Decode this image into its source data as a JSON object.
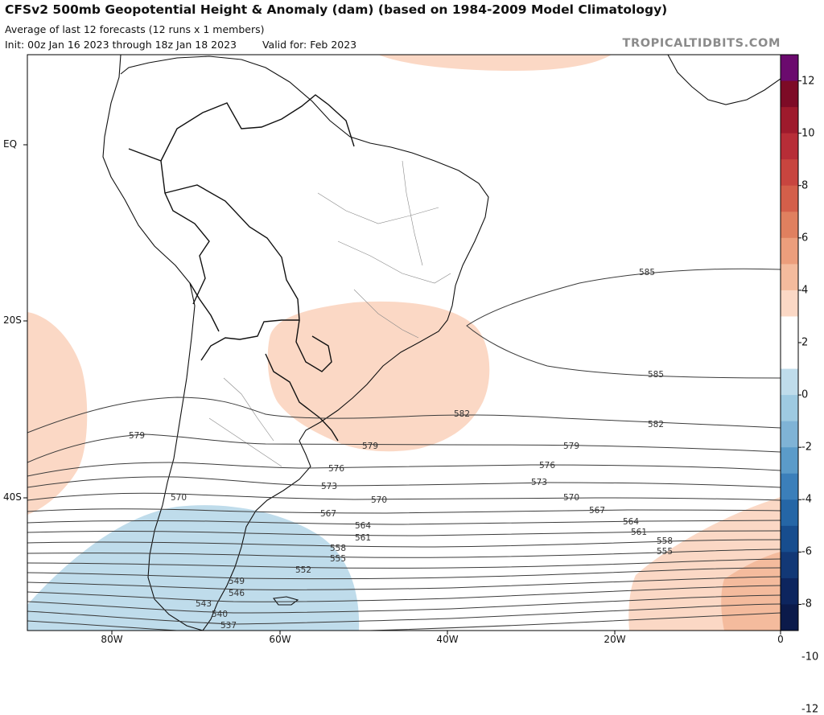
{
  "header": {
    "title": "CFSv2 500mb Geopotential Height & Anomaly (dam) (based on 1984-2009 Model Climatology)",
    "subtitle": "Average of last 12 forecasts (12 runs x 1 members)",
    "init": "Init: 00z Jan 16 2023 through 18z Jan 18 2023",
    "valid": "Valid for: Feb 2023",
    "brand": "TROPICALTIDBITS.COM"
  },
  "axes": {
    "lat_labels": [
      "EQ",
      "20S",
      "40S"
    ],
    "lon_labels": [
      "80W",
      "60W",
      "40W",
      "20W",
      "0"
    ]
  },
  "colorbar": {
    "labels": [
      "12",
      "10",
      "8",
      "6",
      "4",
      "2",
      "0",
      "-2",
      "-4",
      "-6",
      "-8",
      "-10",
      "-12"
    ],
    "colors": [
      "#6b0a6e",
      "#7d0b26",
      "#9e1a2c",
      "#b72d37",
      "#c8453f",
      "#d45f4a",
      "#e0805f",
      "#ec9e7c",
      "#f4bb9d",
      "#fbd8c5",
      "#ffffff",
      "#ffffff",
      "#bfdceb",
      "#9ecae1",
      "#7fb3d6",
      "#5b9bc9",
      "#3b7fba",
      "#2566a6",
      "#174d8e",
      "#123876",
      "#0d255e",
      "#0b1a4a"
    ]
  },
  "contours": [
    {
      "label": "585"
    },
    {
      "label": "582"
    },
    {
      "label": "579"
    },
    {
      "label": "576"
    },
    {
      "label": "573"
    },
    {
      "label": "570"
    },
    {
      "label": "567"
    },
    {
      "label": "564"
    },
    {
      "label": "561"
    },
    {
      "label": "558"
    },
    {
      "label": "555"
    },
    {
      "label": "552"
    },
    {
      "label": "549"
    },
    {
      "label": "546"
    },
    {
      "label": "543"
    },
    {
      "label": "540"
    },
    {
      "label": "537"
    }
  ],
  "anomaly_colors": {
    "positive": "#fbd8c5",
    "negative": "#bfdceb"
  }
}
